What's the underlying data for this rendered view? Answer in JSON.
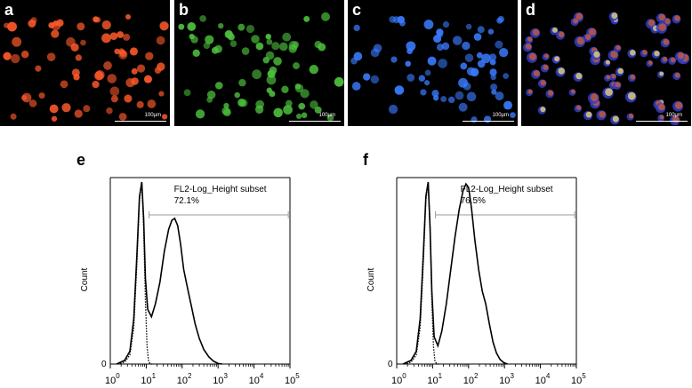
{
  "panels": {
    "a": {
      "letter": "a",
      "scale": "100µm",
      "color": "#ff5a2a"
    },
    "b": {
      "letter": "b",
      "scale": "100µm",
      "color": "#4ec23e"
    },
    "c": {
      "letter": "c",
      "scale": "100µm",
      "color": "#3a7bff"
    },
    "d": {
      "letter": "d",
      "scale": "100µm",
      "color": "#d87a5a"
    }
  },
  "chart_data": [
    {
      "type": "line",
      "panel": "e",
      "ylabel": "Count",
      "y_tick": "0",
      "x_scale": "log",
      "xlim": [
        1,
        100000
      ],
      "x_ticks": [
        "10",
        "10",
        "10",
        "10",
        "10",
        "10"
      ],
      "x_tick_exponents": [
        "0",
        "1",
        "2",
        "3",
        "4",
        "5"
      ],
      "gate_label": "FL2-Log_Height subset",
      "gate_percent": "72.1%",
      "gate_range": [
        12,
        90000
      ],
      "series": [
        {
          "style": "dotted",
          "x": [
            1.6,
            2.5,
            3.5,
            4.5,
            5.5,
            6.5,
            7.5,
            8.5,
            9.5,
            10.5,
            11.5,
            13,
            15
          ],
          "y": [
            0,
            0.01,
            0.05,
            0.2,
            0.55,
            0.9,
            1.0,
            0.75,
            0.35,
            0.1,
            0.02,
            0,
            0
          ]
        },
        {
          "style": "solid",
          "x": [
            1.5,
            2.5,
            3.5,
            4.5,
            5.5,
            6.5,
            7.5,
            8.5,
            9.5,
            11,
            14,
            18,
            24,
            32,
            42,
            52,
            62,
            75,
            90,
            110,
            140,
            180,
            230,
            300,
            400,
            550,
            750,
            1000,
            1300
          ],
          "y": [
            0,
            0.02,
            0.07,
            0.25,
            0.6,
            0.92,
            1.0,
            0.8,
            0.47,
            0.3,
            0.26,
            0.33,
            0.45,
            0.62,
            0.74,
            0.79,
            0.8,
            0.76,
            0.66,
            0.52,
            0.42,
            0.32,
            0.22,
            0.14,
            0.08,
            0.04,
            0.015,
            0.003,
            0
          ]
        }
      ]
    },
    {
      "type": "line",
      "panel": "f",
      "ylabel": "Count",
      "y_tick": "0",
      "x_scale": "log",
      "xlim": [
        1,
        100000
      ],
      "x_ticks": [
        "10",
        "10",
        "10",
        "10",
        "10",
        "10"
      ],
      "x_tick_exponents": [
        "0",
        "1",
        "2",
        "3",
        "4",
        "5"
      ],
      "gate_label": "FL2-Log_Height subset",
      "gate_percent": "76.5%",
      "gate_range": [
        12,
        90000
      ],
      "series": [
        {
          "style": "dotted",
          "x": [
            1.6,
            2.5,
            3.5,
            4.5,
            5.5,
            6.5,
            7.5,
            8.5,
            9.5,
            10.5,
            11.5,
            13,
            15
          ],
          "y": [
            0,
            0.01,
            0.05,
            0.2,
            0.55,
            0.9,
            1.0,
            0.75,
            0.35,
            0.1,
            0.02,
            0,
            0
          ]
        },
        {
          "style": "solid",
          "x": [
            1.5,
            2.5,
            3.5,
            4.5,
            5.5,
            6.5,
            7.5,
            8.5,
            9.5,
            11,
            14,
            18,
            24,
            32,
            42,
            55,
            70,
            85,
            100,
            120,
            150,
            190,
            240,
            300,
            380,
            480,
            600,
            750,
            950,
            1200
          ],
          "y": [
            0,
            0.02,
            0.07,
            0.25,
            0.6,
            0.92,
            1.0,
            0.75,
            0.4,
            0.15,
            0.1,
            0.18,
            0.33,
            0.52,
            0.7,
            0.85,
            0.95,
            0.99,
            0.97,
            0.86,
            0.68,
            0.52,
            0.4,
            0.33,
            0.22,
            0.12,
            0.06,
            0.025,
            0.008,
            0
          ]
        }
      ]
    }
  ]
}
